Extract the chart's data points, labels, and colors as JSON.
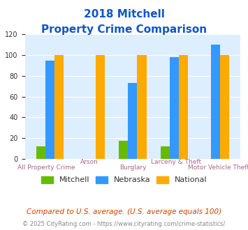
{
  "title_line1": "2018 Mitchell",
  "title_line2": "Property Crime Comparison",
  "categories": [
    "All Property Crime",
    "Arson",
    "Burglary",
    "Larceny & Theft",
    "Motor Vehicle Theft"
  ],
  "x_labels_top": [
    "",
    "Arson",
    "",
    "Larceny & Theft",
    ""
  ],
  "x_labels_bottom": [
    "All Property Crime",
    "",
    "Burglary",
    "",
    "Motor Vehicle Theft"
  ],
  "mitchell": [
    12,
    0,
    17,
    12,
    0
  ],
  "nebraska": [
    95,
    0,
    73,
    98,
    110
  ],
  "national": [
    100,
    100,
    100,
    100,
    100
  ],
  "mitchell_color": "#66bb00",
  "nebraska_color": "#3399ff",
  "national_color": "#ffaa00",
  "ylim": [
    0,
    120
  ],
  "yticks": [
    0,
    20,
    40,
    60,
    80,
    100,
    120
  ],
  "plot_bg_color": "#ddeeff",
  "title_color": "#1155cc",
  "xlabel_color": "#aa6688",
  "footer_text": "Compared to U.S. average. (U.S. average equals 100)",
  "copyright_text": "© 2025 CityRating.com - https://www.cityrating.com/crime-statistics/",
  "footer_color": "#cc4400",
  "copyright_color": "#888888"
}
